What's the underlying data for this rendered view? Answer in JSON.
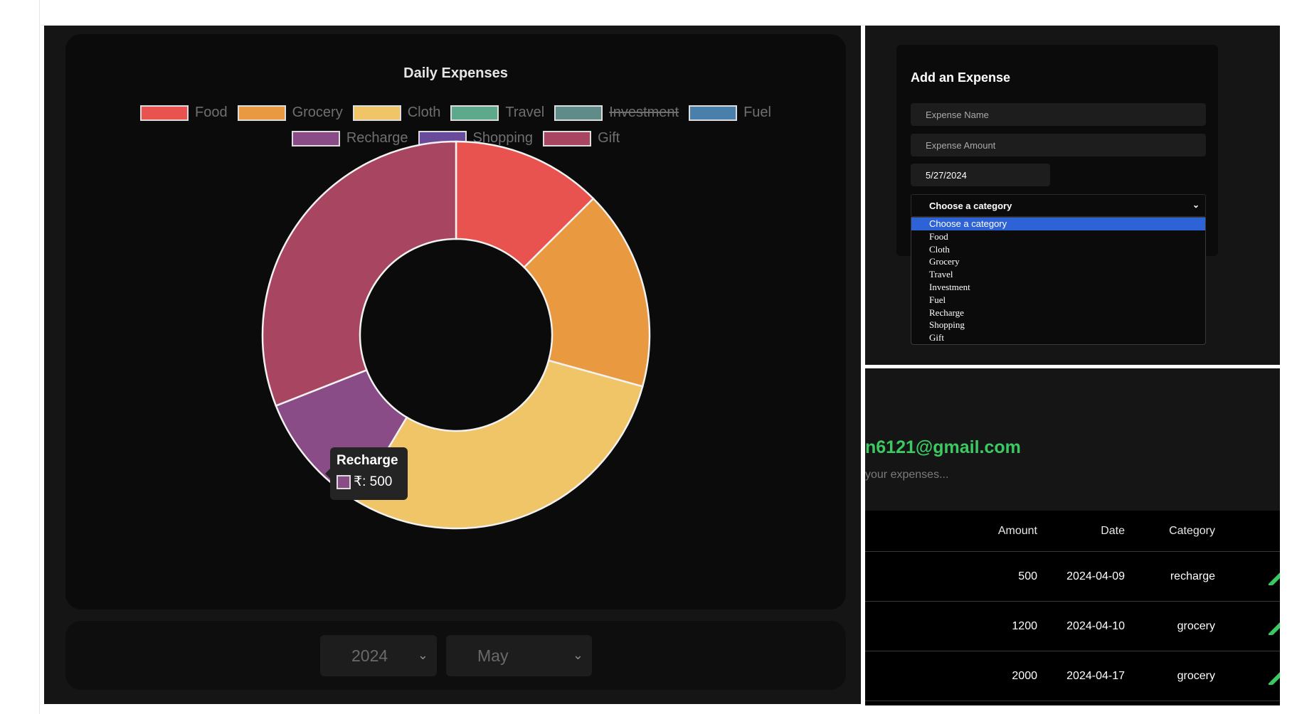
{
  "colors": {
    "accent_select": "#2d63d6",
    "email_green": "#3cc962",
    "edit_green": "#3cc962"
  },
  "chart_data": {
    "type": "pie",
    "title": "Daily Expenses",
    "legend": [
      {
        "label": "Food",
        "color": "#e8534f",
        "hidden": false
      },
      {
        "label": "Grocery",
        "color": "#e99a40",
        "hidden": false
      },
      {
        "label": "Cloth",
        "color": "#efc567",
        "hidden": false
      },
      {
        "label": "Travel",
        "color": "#5ea88c",
        "hidden": false
      },
      {
        "label": "Investment",
        "color": "#5f8c89",
        "hidden": true
      },
      {
        "label": "Fuel",
        "color": "#4b7fab",
        "hidden": false
      },
      {
        "label": "Recharge",
        "color": "#8a4c86",
        "hidden": false
      },
      {
        "label": "Shopping",
        "color": "#6a4a9a",
        "hidden": false
      },
      {
        "label": "Gift",
        "color": "#a84560",
        "hidden": false
      }
    ],
    "slices": [
      {
        "label": "Food",
        "value": 600,
        "color": "#e8534f"
      },
      {
        "label": "Grocery",
        "value": 800,
        "color": "#e99a40"
      },
      {
        "label": "Cloth",
        "value": 1400,
        "color": "#efc567"
      },
      {
        "label": "Travel",
        "value": 0,
        "color": "#5ea88c"
      },
      {
        "label": "Fuel",
        "value": 0,
        "color": "#4b7fab"
      },
      {
        "label": "Recharge",
        "value": 500,
        "color": "#8a4c86"
      },
      {
        "label": "Shopping",
        "value": 0,
        "color": "#6a4a9a"
      },
      {
        "label": "Gift",
        "value": 1480,
        "color": "#a84560"
      }
    ],
    "tooltip": {
      "title": "Recharge",
      "label": "₹: 500"
    }
  },
  "filters": {
    "year": "2024",
    "month": "May"
  },
  "form": {
    "heading": "Add an Expense",
    "name_placeholder": "Expense Name",
    "amount_placeholder": "Expense Amount",
    "date_value": "5/27/2024",
    "category_selected": "Choose a category",
    "category_options": [
      "Choose a category",
      "Food",
      "Cloth",
      "Grocery",
      "Travel",
      "Investment",
      "Fuel",
      "Recharge",
      "Shopping",
      "Gift"
    ]
  },
  "user": {
    "email_fragment": "n6121@gmail.com",
    "subtitle_fragment": "your expenses..."
  },
  "table": {
    "headers": {
      "amount": "Amount",
      "date": "Date",
      "category": "Category"
    },
    "rows": [
      {
        "amount": "500",
        "date": "2024-04-09",
        "category": "recharge"
      },
      {
        "amount": "1200",
        "date": "2024-04-10",
        "category": "grocery"
      },
      {
        "amount": "2000",
        "date": "2024-04-17",
        "category": "grocery"
      }
    ]
  }
}
